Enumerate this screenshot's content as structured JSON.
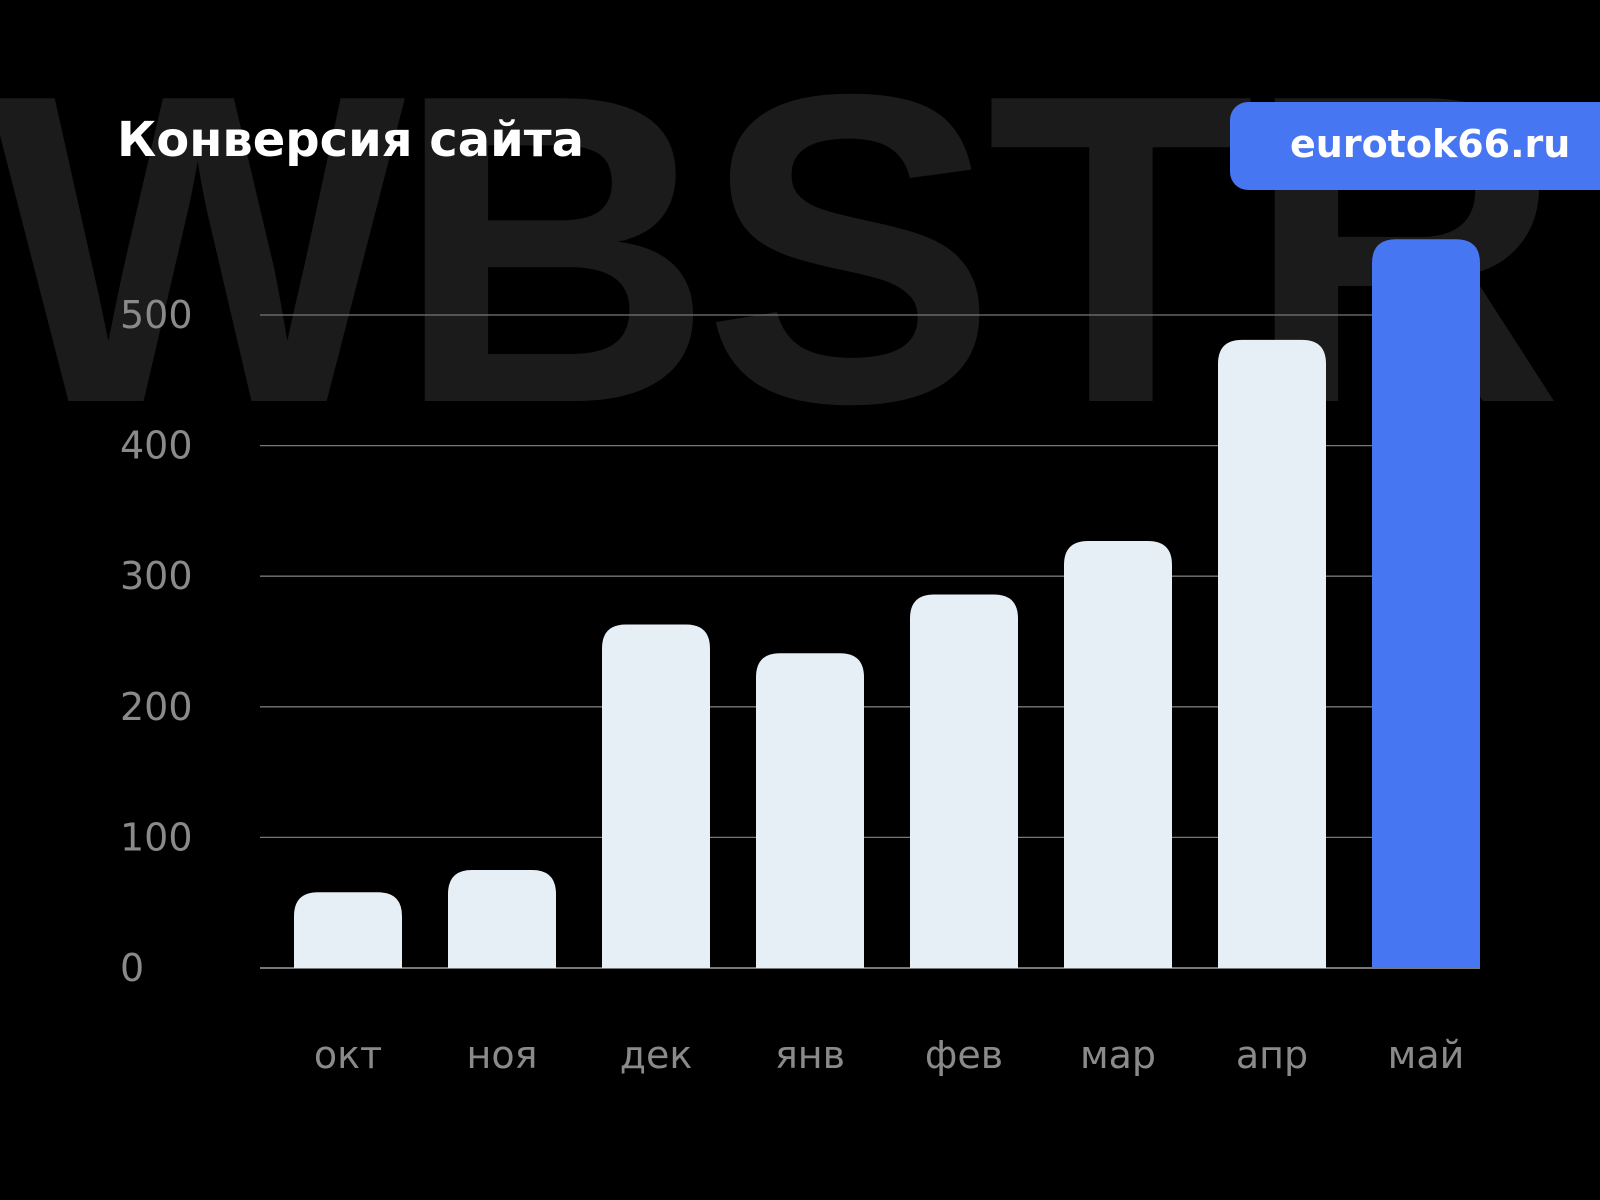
{
  "watermark": "WBSTR",
  "title": "Конверсия сайта",
  "badge": "eurotok66.ru",
  "colors": {
    "bar": "#e6eef6",
    "highlight": "#4676f2",
    "grid": "#777777",
    "axis_text": "#8a8a8a"
  },
  "chart_data": {
    "type": "bar",
    "title": "Конверсия сайта",
    "categories": [
      "окт",
      "ноя",
      "дек",
      "янв",
      "фев",
      "мар",
      "апр",
      "май"
    ],
    "values": [
      58,
      75,
      263,
      241,
      286,
      327,
      481,
      558
    ],
    "highlight_index": 7,
    "yticks": [
      0,
      100,
      200,
      300,
      400,
      500
    ],
    "ylim": [
      0,
      560
    ],
    "grid": true,
    "xlabel": "",
    "ylabel": ""
  }
}
